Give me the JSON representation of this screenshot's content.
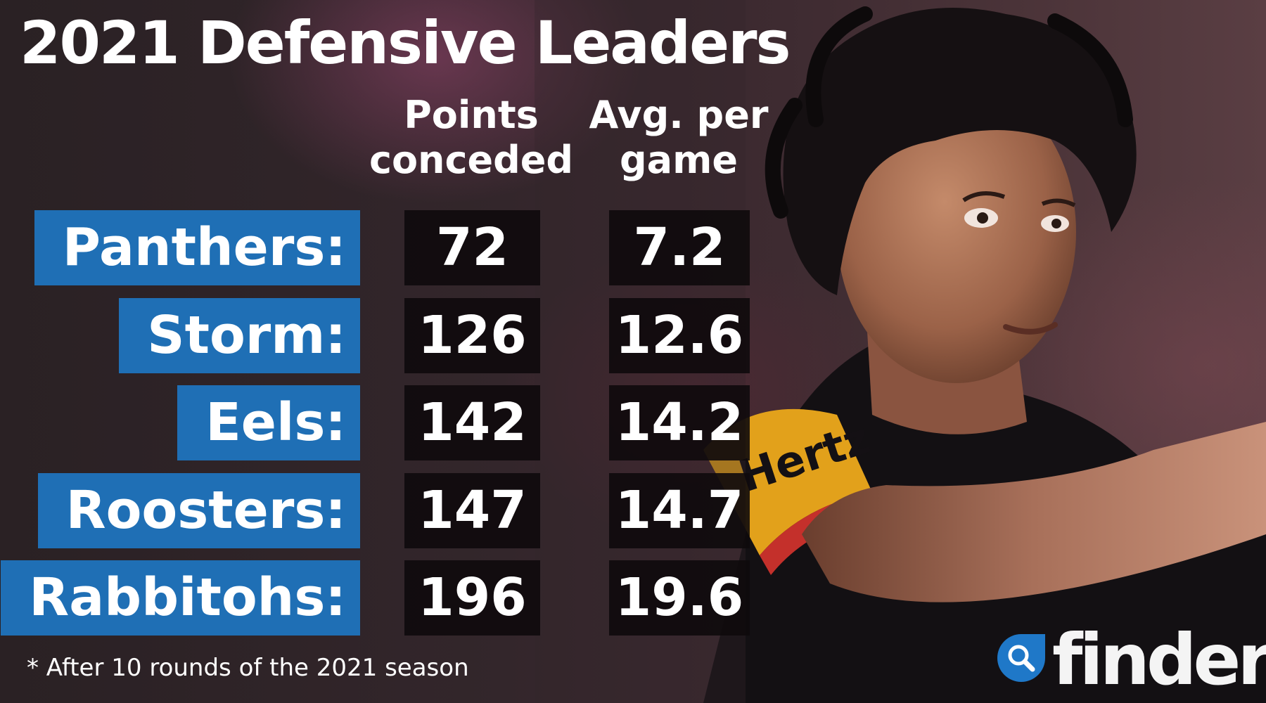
{
  "title": "2021 Defensive Leaders",
  "headers": {
    "points_line1": "Points",
    "points_line2": "conceded",
    "avg_line1": "Avg. per",
    "avg_line2": "game"
  },
  "rows": [
    {
      "team": "Panthers:",
      "points": "72",
      "avg": "7.2"
    },
    {
      "team": "Storm:",
      "points": "126",
      "avg": "12.6"
    },
    {
      "team": "Eels:",
      "points": "142",
      "avg": "14.2"
    },
    {
      "team": "Roosters:",
      "points": "147",
      "avg": "14.7"
    },
    {
      "team": "Rabbitohs:",
      "points": "196",
      "avg": "19.6"
    }
  ],
  "footnote": "* After 10 rounds of the 2021 season",
  "logo": {
    "text": "finder",
    "icon": "search-magnifier-icon"
  },
  "colors": {
    "team_box": "#1f6fb5",
    "value_box": "#0e0a0c",
    "logo_blue": "#1f78c8"
  },
  "chart_data": {
    "type": "table",
    "title": "2021 Defensive Leaders",
    "columns": [
      "Points conceded",
      "Avg. per game"
    ],
    "categories": [
      "Panthers",
      "Storm",
      "Eels",
      "Roosters",
      "Rabbitohs"
    ],
    "series": [
      {
        "name": "Points conceded",
        "values": [
          72,
          126,
          142,
          147,
          196
        ]
      },
      {
        "name": "Avg. per game",
        "values": [
          7.2,
          12.6,
          14.2,
          14.7,
          19.6
        ]
      }
    ],
    "annotations": [
      "* After 10 rounds of the 2021 season"
    ]
  }
}
